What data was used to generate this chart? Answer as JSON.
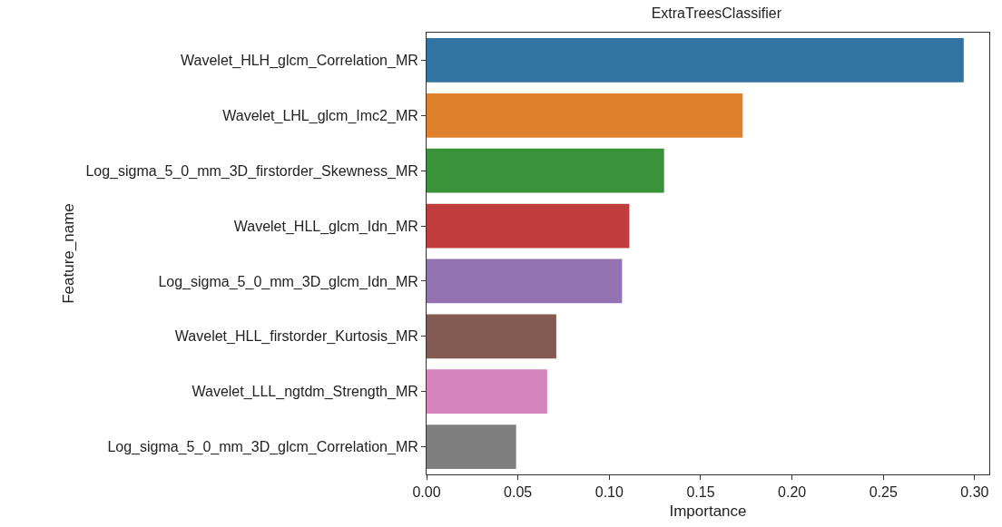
{
  "chart_data": {
    "type": "bar",
    "orientation": "horizontal",
    "title": "ExtraTreesClassifier",
    "xlabel": "Importance",
    "ylabel": "Feature_name",
    "categories": [
      "Wavelet_HLH_glcm_Correlation_MR",
      "Wavelet_LHL_glcm_Imc2_MR",
      "Log_sigma_5_0_mm_3D_firstorder_Skewness_MR",
      "Wavelet_HLL_glcm_Idn_MR",
      "Log_sigma_5_0_mm_3D_glcm_Idn_MR",
      "Wavelet_HLL_firstorder_Kurtosis_MR",
      "Wavelet_LLL_ngtdm_Strength_MR",
      "Log_sigma_5_0_mm_3D_glcm_Correlation_MR"
    ],
    "values": [
      0.294,
      0.173,
      0.13,
      0.111,
      0.107,
      0.071,
      0.066,
      0.049
    ],
    "colors": [
      "#3274a1",
      "#e1812c",
      "#3a923a",
      "#c03d3e",
      "#9372b2",
      "#845b53",
      "#d684bd",
      "#7f7f7f"
    ],
    "xlim": [
      0,
      0.308
    ],
    "xticks": [
      {
        "value": 0,
        "label": "0.00"
      },
      {
        "value": 0.05,
        "label": "0.05"
      },
      {
        "value": 0.1,
        "label": "0.10"
      },
      {
        "value": 0.15,
        "label": "0.15"
      },
      {
        "value": 0.2,
        "label": "0.20"
      },
      {
        "value": 0.25,
        "label": "0.25"
      },
      {
        "value": 0.3,
        "label": "0.30"
      }
    ],
    "grid": false
  }
}
